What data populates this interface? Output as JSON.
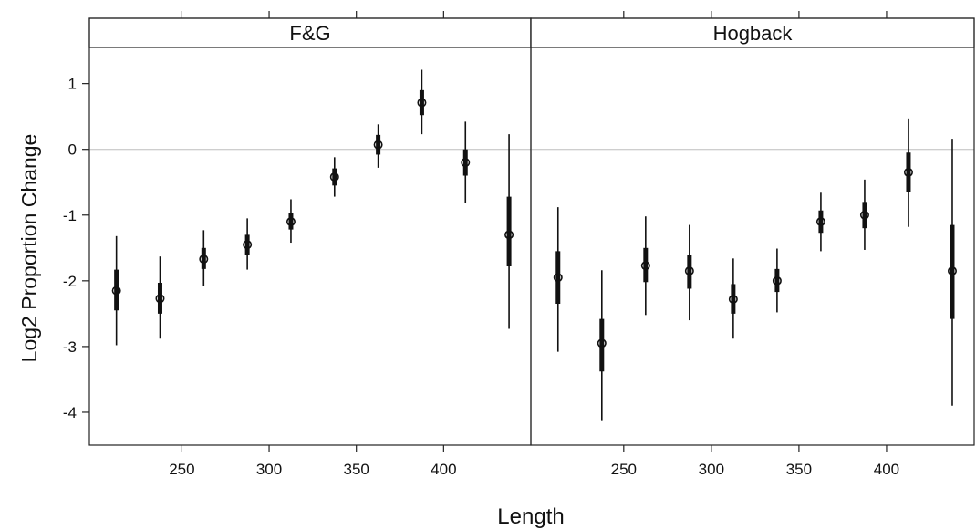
{
  "chart_data": {
    "type": "scatter",
    "xlabel": "Length",
    "ylabel": "Log2 Proportion Change",
    "ylim": [
      -4.5,
      1.55
    ],
    "reference_line": 0,
    "y_ticks": [
      1,
      0,
      -1,
      -2,
      -3,
      -4
    ],
    "y_tick_labels": [
      "1",
      "0",
      "-1",
      "-2",
      "-3",
      "-4"
    ],
    "panels": [
      {
        "label": "F&G",
        "xlim": [
          197,
          450
        ],
        "x_ticks": [
          250,
          300,
          350,
          400
        ],
        "x_tick_labels": [
          "250",
          "300",
          "350",
          "400"
        ],
        "points": [
          {
            "x": 212.5,
            "y": -2.15,
            "inner": [
              -2.45,
              -1.83
            ],
            "outer": [
              -2.98,
              -1.32
            ]
          },
          {
            "x": 237.5,
            "y": -2.27,
            "inner": [
              -2.5,
              -2.03
            ],
            "outer": [
              -2.88,
              -1.63
            ]
          },
          {
            "x": 262.5,
            "y": -1.67,
            "inner": [
              -1.82,
              -1.5
            ],
            "outer": [
              -2.08,
              -1.23
            ]
          },
          {
            "x": 287.5,
            "y": -1.45,
            "inner": [
              -1.6,
              -1.3
            ],
            "outer": [
              -1.83,
              -1.05
            ]
          },
          {
            "x": 312.5,
            "y": -1.1,
            "inner": [
              -1.22,
              -0.97
            ],
            "outer": [
              -1.42,
              -0.76
            ]
          },
          {
            "x": 337.5,
            "y": -0.42,
            "inner": [
              -0.55,
              -0.29
            ],
            "outer": [
              -0.72,
              -0.12
            ]
          },
          {
            "x": 362.5,
            "y": 0.07,
            "inner": [
              -0.08,
              0.22
            ],
            "outer": [
              -0.28,
              0.38
            ]
          },
          {
            "x": 387.5,
            "y": 0.71,
            "inner": [
              0.52,
              0.9
            ],
            "outer": [
              0.23,
              1.21
            ]
          },
          {
            "x": 412.5,
            "y": -0.2,
            "inner": [
              -0.4,
              0.0
            ],
            "outer": [
              -0.82,
              0.42
            ]
          },
          {
            "x": 437.5,
            "y": -1.3,
            "inner": [
              -1.78,
              -0.72
            ],
            "outer": [
              -2.73,
              0.23
            ]
          }
        ]
      },
      {
        "label": "Hogback",
        "xlim": [
          197,
          450
        ],
        "x_ticks": [
          250,
          300,
          350,
          400
        ],
        "x_tick_labels": [
          "250",
          "300",
          "350",
          "400"
        ],
        "points": [
          {
            "x": 212.5,
            "y": -1.95,
            "inner": [
              -2.35,
              -1.55
            ],
            "outer": [
              -3.08,
              -0.88
            ]
          },
          {
            "x": 237.5,
            "y": -2.95,
            "inner": [
              -3.38,
              -2.58
            ],
            "outer": [
              -4.12,
              -1.84
            ]
          },
          {
            "x": 262.5,
            "y": -1.77,
            "inner": [
              -2.02,
              -1.5
            ],
            "outer": [
              -2.52,
              -1.02
            ]
          },
          {
            "x": 287.5,
            "y": -1.85,
            "inner": [
              -2.12,
              -1.6
            ],
            "outer": [
              -2.6,
              -1.15
            ]
          },
          {
            "x": 312.5,
            "y": -2.28,
            "inner": [
              -2.5,
              -2.05
            ],
            "outer": [
              -2.88,
              -1.66
            ]
          },
          {
            "x": 337.5,
            "y": -2.0,
            "inner": [
              -2.17,
              -1.82
            ],
            "outer": [
              -2.48,
              -1.51
            ]
          },
          {
            "x": 362.5,
            "y": -1.1,
            "inner": [
              -1.27,
              -0.93
            ],
            "outer": [
              -1.55,
              -0.66
            ]
          },
          {
            "x": 387.5,
            "y": -1.0,
            "inner": [
              -1.2,
              -0.8
            ],
            "outer": [
              -1.53,
              -0.46
            ]
          },
          {
            "x": 412.5,
            "y": -0.35,
            "inner": [
              -0.65,
              -0.05
            ],
            "outer": [
              -1.18,
              0.47
            ]
          },
          {
            "x": 437.5,
            "y": -1.85,
            "inner": [
              -2.58,
              -1.15
            ],
            "outer": [
              -3.9,
              0.16
            ]
          }
        ]
      }
    ]
  }
}
